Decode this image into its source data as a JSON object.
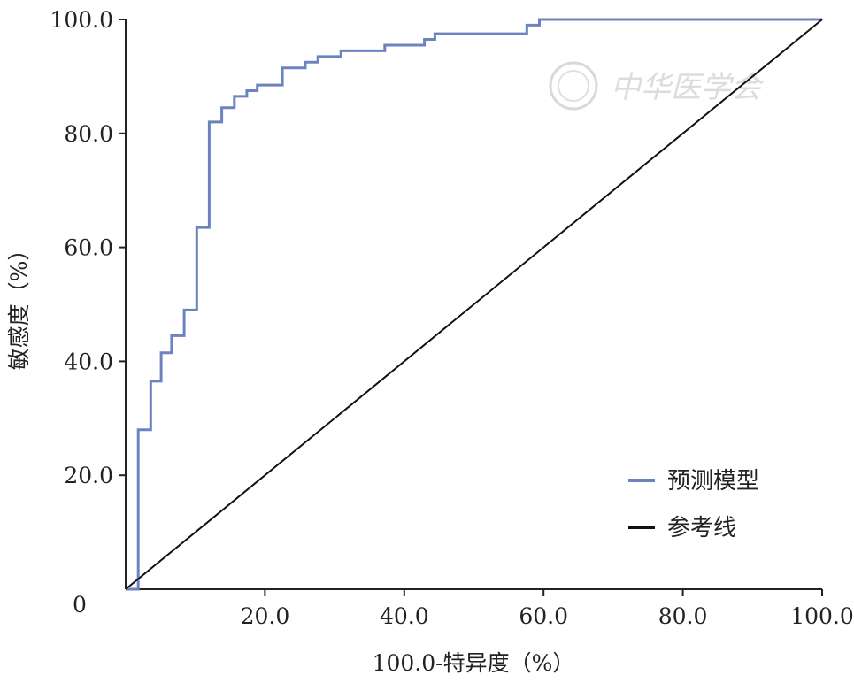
{
  "chart_data": {
    "type": "line",
    "xlabel": "100.0-特异度（%）",
    "ylabel": "敏感度（%）",
    "xlim": [
      0,
      100
    ],
    "ylim": [
      0,
      100
    ],
    "x_ticks": [
      "0",
      "20.0",
      "40.0",
      "60.0",
      "80.0",
      "100.0"
    ],
    "y_ticks": [
      "20.0",
      "40.0",
      "60.0",
      "80.0",
      "100.0"
    ],
    "x_tick_values": [
      0,
      20,
      40,
      60,
      80,
      100
    ],
    "y_tick_values": [
      20,
      40,
      60,
      80,
      100
    ],
    "grid": false,
    "legend_position": "bottom-right",
    "series": [
      {
        "name": "预测模型",
        "color": "#6b84bf",
        "step": true,
        "x": [
          0,
          1.8,
          1.8,
          3.6,
          3.6,
          5.1,
          5.1,
          6.6,
          6.6,
          8.4,
          8.4,
          10.2,
          10.2,
          12.0,
          12.0,
          13.8,
          13.8,
          15.6,
          15.6,
          17.4,
          17.4,
          18.9,
          18.9,
          22.5,
          22.5,
          25.8,
          25.8,
          27.6,
          27.6,
          30.9,
          30.9,
          37.2,
          37.2,
          42.9,
          42.9,
          44.4,
          44.4,
          57.6,
          57.6,
          59.4,
          59.4,
          100
        ],
        "y": [
          0,
          0,
          28,
          28,
          36.5,
          36.5,
          41.5,
          41.5,
          44.5,
          44.5,
          49,
          49,
          63.5,
          63.5,
          82,
          82,
          84.5,
          84.5,
          86.5,
          86.5,
          87.5,
          87.5,
          88.5,
          88.5,
          91.5,
          91.5,
          92.5,
          92.5,
          93.5,
          93.5,
          94.5,
          94.5,
          95.5,
          95.5,
          96.5,
          96.5,
          97.5,
          97.5,
          99,
          99,
          100,
          100
        ]
      },
      {
        "name": "参考线",
        "color": "#111111",
        "step": false,
        "x": [
          0,
          100
        ],
        "y": [
          0,
          100
        ]
      }
    ]
  },
  "watermark": {
    "text": "中华医学会"
  },
  "colors": {
    "axis": "#222222",
    "background": "#ffffff"
  }
}
